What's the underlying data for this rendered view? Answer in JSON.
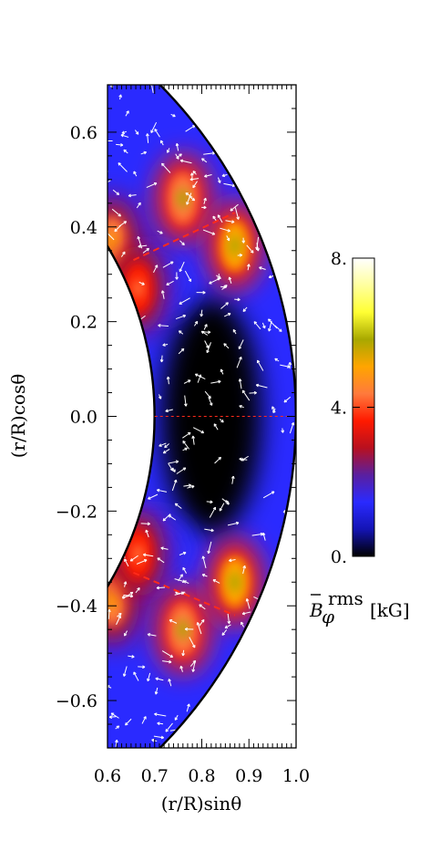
{
  "chart_data": {
    "type": "heatmap",
    "xlabel": "(r/R)sinθ",
    "ylabel": "(r/R)cosθ",
    "xlim": [
      0.6,
      1.0
    ],
    "ylim": [
      -0.7,
      0.7
    ],
    "xticks": [
      "0.6",
      "0.7",
      "0.8",
      "0.9",
      "1.0"
    ],
    "yticks": [
      "0.6",
      "0.4",
      "0.2",
      "0.0",
      "−0.2",
      "−0.4",
      "−0.6"
    ],
    "ytick_values": [
      0.6,
      0.4,
      0.2,
      0.0,
      -0.2,
      -0.4,
      -0.6
    ],
    "domain": {
      "r_inner": 0.7,
      "r_outer": 1.0
    },
    "colorbar": {
      "ticks": [
        "0.",
        "4.",
        "8."
      ],
      "tick_values": [
        0,
        4,
        8
      ],
      "range": [
        0,
        8
      ],
      "label_symbol": "B",
      "label_sub": "φ",
      "label_sup": "rms",
      "label_unit": "[kG]"
    },
    "field_peaks": [
      {
        "x": 0.76,
        "y": 0.46,
        "value": 5.5
      },
      {
        "x": 0.87,
        "y": 0.36,
        "value": 6.0
      },
      {
        "x": 0.61,
        "y": 0.37,
        "value": 5.0
      },
      {
        "x": 0.665,
        "y": 0.27,
        "value": 4.0
      },
      {
        "x": 0.76,
        "y": -0.45,
        "value": 5.5
      },
      {
        "x": 0.87,
        "y": -0.35,
        "value": 6.0
      },
      {
        "x": 0.61,
        "y": -0.39,
        "value": 5.0
      },
      {
        "x": 0.665,
        "y": -0.29,
        "value": 4.0
      }
    ],
    "background_level": 1.6,
    "equator_level": 0.3,
    "colors": {
      "colormap": [
        "#000000",
        "#1414b4",
        "#2a2aff",
        "#5a1fa0",
        "#b8101f",
        "#ff1a00",
        "#ff7a3c",
        "#ffa500",
        "#a8a800",
        "#ffff33",
        "#ffff9e",
        "#ffffff"
      ],
      "arrows": "#ffffff",
      "dashed_lines": "#ff2a1a"
    }
  }
}
